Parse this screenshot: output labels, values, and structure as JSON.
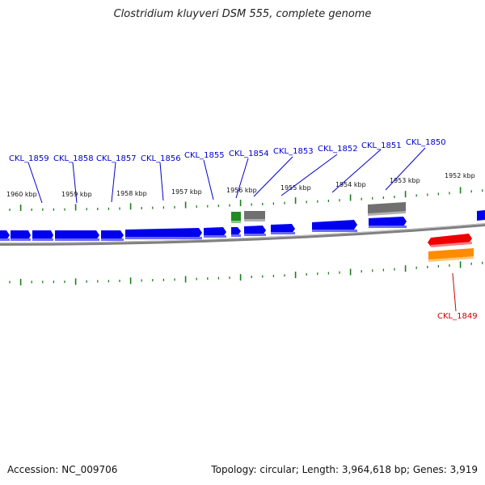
{
  "title": "Clostridium kluyveri DSM 555, complete genome",
  "footer": {
    "accession": "Accession: NC_009706",
    "summary": "Topology: circular; Length: 3,964,618 bp; Genes: 3,919"
  },
  "colors": {
    "forward_gene": "#0000ee",
    "reverse_gene": "#ee0000",
    "reverse_feature": "#ff8c00",
    "rna_gene": "#228b22",
    "other_feature": "#707070",
    "backbone": "#808080",
    "tick": "#1a7f1a",
    "forward_label": "#0000cc",
    "reverse_label": "#cc0000"
  },
  "kbp_labels": [
    "1960 kbp",
    "1959 kbp",
    "1958 kbp",
    "1957 kbp",
    "1956 kbp",
    "1955 kbp",
    "1954 kbp",
    "1953 kbp",
    "1952 kbp"
  ],
  "gene_labels": [
    "CKL_1859",
    "CKL_1858",
    "CKL_1857",
    "CKL_1856",
    "CKL_1855",
    "CKL_1854",
    "CKL_1853",
    "CKL_1852",
    "CKL_1851",
    "CKL_1850",
    "CKL_1849"
  ]
}
